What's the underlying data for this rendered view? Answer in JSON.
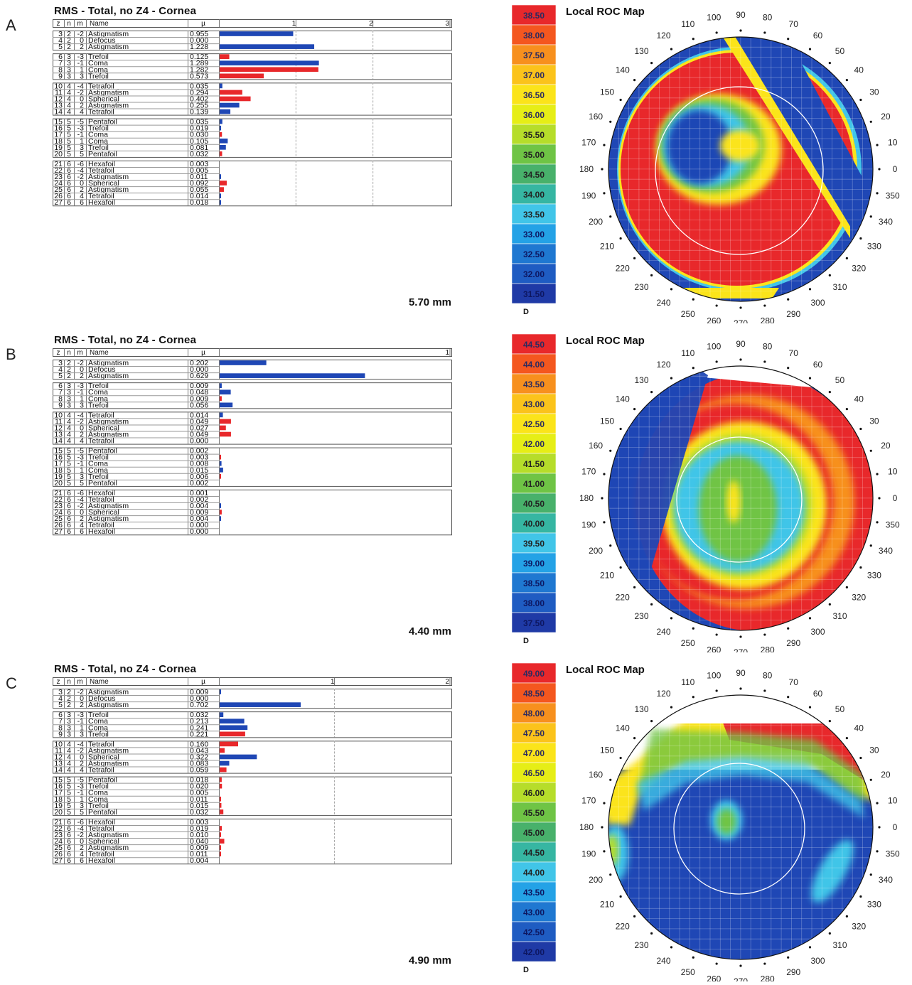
{
  "common": {
    "rms_title": "RMS - Total, no Z4 - Cornea",
    "map_title": "Local ROC Map",
    "unit": "D",
    "headers": {
      "z": "z",
      "n": "n",
      "m": "m",
      "name": "Name",
      "mu": "µ"
    },
    "angle_labels": [
      "0",
      "10",
      "20",
      "30",
      "40",
      "50",
      "60",
      "70",
      "80",
      "90",
      "100",
      "110",
      "120",
      "130",
      "140",
      "150",
      "160",
      "170",
      "180",
      "190",
      "200",
      "210",
      "220",
      "230",
      "240",
      "250",
      "260",
      "270",
      "280",
      "290",
      "300",
      "310",
      "320",
      "330",
      "340",
      "350"
    ]
  },
  "colors": {
    "positive_bar": "#e8282b",
    "negative_bar": "#1f47b5"
  },
  "panels": [
    {
      "letter": "A",
      "pupil": "5.70 mm",
      "axis_max": 3,
      "axis_ticks": [
        "1",
        "2",
        "3"
      ],
      "scale": [
        "38.50",
        "38.00",
        "37.50",
        "37.00",
        "36.50",
        "36.00",
        "35.50",
        "35.00",
        "34.50",
        "34.00",
        "33.50",
        "33.00",
        "32.50",
        "32.00",
        "31.50"
      ],
      "chart_data": {
        "type": "bar",
        "title": "RMS - Total, no Z4 - Cornea",
        "xlabel": "µ",
        "xlim": [
          0,
          3
        ],
        "rows": [
          {
            "z": "3",
            "n": "2",
            "m": "-2",
            "name": "Astigmatism",
            "value": 0.955,
            "label": "0.955",
            "sign": "neg"
          },
          {
            "z": "4",
            "n": "2",
            "m": "0",
            "name": "Defocus",
            "value": 0.0,
            "label": "0.000",
            "sign": "none"
          },
          {
            "z": "5",
            "n": "2",
            "m": "2",
            "name": "Astigmatism",
            "value": 1.228,
            "label": "1.228",
            "sign": "neg"
          },
          {
            "z": "6",
            "n": "3",
            "m": "-3",
            "name": "Trefoil",
            "value": 0.125,
            "label": "0.125",
            "sign": "pos"
          },
          {
            "z": "7",
            "n": "3",
            "m": "-1",
            "name": "Coma",
            "value": 1.289,
            "label": "1.289",
            "sign": "neg"
          },
          {
            "z": "8",
            "n": "3",
            "m": "1",
            "name": "Coma",
            "value": 1.282,
            "label": "1.282",
            "sign": "pos"
          },
          {
            "z": "9",
            "n": "3",
            "m": "3",
            "name": "Trefoil",
            "value": 0.573,
            "label": "0.573",
            "sign": "pos"
          },
          {
            "z": "10",
            "n": "4",
            "m": "-4",
            "name": "Tetrafoil",
            "value": 0.035,
            "label": "0.035",
            "sign": "neg"
          },
          {
            "z": "11",
            "n": "4",
            "m": "-2",
            "name": "Astigmatism",
            "value": 0.294,
            "label": "0.294",
            "sign": "pos"
          },
          {
            "z": "12",
            "n": "4",
            "m": "0",
            "name": "Spherical",
            "value": 0.402,
            "label": "0.402",
            "sign": "pos"
          },
          {
            "z": "13",
            "n": "4",
            "m": "2",
            "name": "Astigmatism",
            "value": 0.255,
            "label": "0.255",
            "sign": "neg"
          },
          {
            "z": "14",
            "n": "4",
            "m": "4",
            "name": "Tetrafoil",
            "value": 0.139,
            "label": "0.139",
            "sign": "neg"
          },
          {
            "z": "15",
            "n": "5",
            "m": "-5",
            "name": "Pentafoil",
            "value": 0.035,
            "label": "0.035",
            "sign": "neg"
          },
          {
            "z": "16",
            "n": "5",
            "m": "-3",
            "name": "Trefoil",
            "value": 0.019,
            "label": "0.019",
            "sign": "neg"
          },
          {
            "z": "17",
            "n": "5",
            "m": "-1",
            "name": "Coma",
            "value": 0.03,
            "label": "0.030",
            "sign": "pos"
          },
          {
            "z": "18",
            "n": "5",
            "m": "1",
            "name": "Coma",
            "value": 0.105,
            "label": "0.105",
            "sign": "neg"
          },
          {
            "z": "19",
            "n": "5",
            "m": "3",
            "name": "Trefoil",
            "value": 0.081,
            "label": "0.081",
            "sign": "neg"
          },
          {
            "z": "20",
            "n": "5",
            "m": "5",
            "name": "Pentafoil",
            "value": 0.032,
            "label": "0.032",
            "sign": "pos"
          },
          {
            "z": "21",
            "n": "6",
            "m": "-6",
            "name": "Hexafoil",
            "value": 0.003,
            "label": "0.003",
            "sign": "none"
          },
          {
            "z": "22",
            "n": "6",
            "m": "-4",
            "name": "Tetrafoil",
            "value": 0.005,
            "label": "0.005",
            "sign": "none"
          },
          {
            "z": "23",
            "n": "6",
            "m": "-2",
            "name": "Astigmatism",
            "value": 0.011,
            "label": "0.011",
            "sign": "neg"
          },
          {
            "z": "24",
            "n": "6",
            "m": "0",
            "name": "Spherical",
            "value": 0.092,
            "label": "0.092",
            "sign": "pos"
          },
          {
            "z": "25",
            "n": "6",
            "m": "2",
            "name": "Astigmatism",
            "value": 0.055,
            "label": "0.055",
            "sign": "pos"
          },
          {
            "z": "26",
            "n": "6",
            "m": "4",
            "name": "Tetrafoil",
            "value": 0.014,
            "label": "0.014",
            "sign": "neg"
          },
          {
            "z": "27",
            "n": "6",
            "m": "6",
            "name": "Hexafoil",
            "value": 0.018,
            "label": "0.018",
            "sign": "neg"
          }
        ]
      }
    },
    {
      "letter": "B",
      "pupil": "4.40 mm",
      "axis_max": 1,
      "axis_ticks": [
        "1"
      ],
      "scale": [
        "44.50",
        "44.00",
        "43.50",
        "43.00",
        "42.50",
        "42.00",
        "41.50",
        "41.00",
        "40.50",
        "40.00",
        "39.50",
        "39.00",
        "38.50",
        "38.00",
        "37.50"
      ],
      "chart_data": {
        "type": "bar",
        "title": "RMS - Total, no Z4 - Cornea",
        "xlabel": "µ",
        "xlim": [
          0,
          1
        ],
        "rows": [
          {
            "z": "3",
            "n": "2",
            "m": "-2",
            "name": "Astigmatism",
            "value": 0.202,
            "label": "0.202",
            "sign": "neg"
          },
          {
            "z": "4",
            "n": "2",
            "m": "0",
            "name": "Defocus",
            "value": 0.0,
            "label": "0.000",
            "sign": "none"
          },
          {
            "z": "5",
            "n": "2",
            "m": "2",
            "name": "Astigmatism",
            "value": 0.629,
            "label": "0.629",
            "sign": "neg"
          },
          {
            "z": "6",
            "n": "3",
            "m": "-3",
            "name": "Trefoil",
            "value": 0.009,
            "label": "0.009",
            "sign": "neg"
          },
          {
            "z": "7",
            "n": "3",
            "m": "-1",
            "name": "Coma",
            "value": 0.048,
            "label": "0.048",
            "sign": "neg"
          },
          {
            "z": "8",
            "n": "3",
            "m": "1",
            "name": "Coma",
            "value": 0.009,
            "label": "0.009",
            "sign": "pos"
          },
          {
            "z": "9",
            "n": "3",
            "m": "3",
            "name": "Trefoil",
            "value": 0.056,
            "label": "0.056",
            "sign": "neg"
          },
          {
            "z": "10",
            "n": "4",
            "m": "-4",
            "name": "Tetrafoil",
            "value": 0.014,
            "label": "0.014",
            "sign": "neg"
          },
          {
            "z": "11",
            "n": "4",
            "m": "-2",
            "name": "Astigmatism",
            "value": 0.049,
            "label": "0.049",
            "sign": "pos"
          },
          {
            "z": "12",
            "n": "4",
            "m": "0",
            "name": "Spherical",
            "value": 0.027,
            "label": "0.027",
            "sign": "pos"
          },
          {
            "z": "13",
            "n": "4",
            "m": "2",
            "name": "Astigmatism",
            "value": 0.049,
            "label": "0.049",
            "sign": "pos"
          },
          {
            "z": "14",
            "n": "4",
            "m": "4",
            "name": "Tetrafoil",
            "value": 0.0,
            "label": "0.000",
            "sign": "none"
          },
          {
            "z": "15",
            "n": "5",
            "m": "-5",
            "name": "Pentafoil",
            "value": 0.002,
            "label": "0.002",
            "sign": "none"
          },
          {
            "z": "16",
            "n": "5",
            "m": "-3",
            "name": "Trefoil",
            "value": 0.003,
            "label": "0.003",
            "sign": "pos"
          },
          {
            "z": "17",
            "n": "5",
            "m": "-1",
            "name": "Coma",
            "value": 0.008,
            "label": "0.008",
            "sign": "neg"
          },
          {
            "z": "18",
            "n": "5",
            "m": "1",
            "name": "Coma",
            "value": 0.015,
            "label": "0.015",
            "sign": "neg"
          },
          {
            "z": "19",
            "n": "5",
            "m": "3",
            "name": "Trefoil",
            "value": 0.006,
            "label": "0.006",
            "sign": "pos"
          },
          {
            "z": "20",
            "n": "5",
            "m": "5",
            "name": "Pentafoil",
            "value": 0.002,
            "label": "0.002",
            "sign": "none"
          },
          {
            "z": "21",
            "n": "6",
            "m": "-6",
            "name": "Hexafoil",
            "value": 0.001,
            "label": "0.001",
            "sign": "none"
          },
          {
            "z": "22",
            "n": "6",
            "m": "-4",
            "name": "Tetrafoil",
            "value": 0.002,
            "label": "0.002",
            "sign": "none"
          },
          {
            "z": "23",
            "n": "6",
            "m": "-2",
            "name": "Astigmatism",
            "value": 0.004,
            "label": "0.004",
            "sign": "neg"
          },
          {
            "z": "24",
            "n": "6",
            "m": "0",
            "name": "Spherical",
            "value": 0.009,
            "label": "0.009",
            "sign": "pos"
          },
          {
            "z": "25",
            "n": "6",
            "m": "2",
            "name": "Astigmatism",
            "value": 0.004,
            "label": "0.004",
            "sign": "neg"
          },
          {
            "z": "26",
            "n": "6",
            "m": "4",
            "name": "Tetrafoil",
            "value": 0.0,
            "label": "0.000",
            "sign": "none"
          },
          {
            "z": "27",
            "n": "6",
            "m": "6",
            "name": "Hexafoil",
            "value": 0.0,
            "label": "0.000",
            "sign": "none"
          }
        ]
      }
    },
    {
      "letter": "C",
      "pupil": "4.90 mm",
      "axis_max": 2,
      "axis_ticks": [
        "1",
        "2"
      ],
      "scale": [
        "49.00",
        "48.50",
        "48.00",
        "47.50",
        "47.00",
        "46.50",
        "46.00",
        "45.50",
        "45.00",
        "44.50",
        "44.00",
        "43.50",
        "43.00",
        "42.50",
        "42.00"
      ],
      "chart_data": {
        "type": "bar",
        "title": "RMS - Total, no Z4 - Cornea",
        "xlabel": "µ",
        "xlim": [
          0,
          2
        ],
        "rows": [
          {
            "z": "3",
            "n": "2",
            "m": "-2",
            "name": "Astigmatism",
            "value": 0.009,
            "label": "0.009",
            "sign": "neg"
          },
          {
            "z": "4",
            "n": "2",
            "m": "0",
            "name": "Defocus",
            "value": 0.0,
            "label": "0.000",
            "sign": "none"
          },
          {
            "z": "5",
            "n": "2",
            "m": "2",
            "name": "Astigmatism",
            "value": 0.702,
            "label": "0.702",
            "sign": "neg"
          },
          {
            "z": "6",
            "n": "3",
            "m": "-3",
            "name": "Trefoil",
            "value": 0.032,
            "label": "0.032",
            "sign": "neg"
          },
          {
            "z": "7",
            "n": "3",
            "m": "-1",
            "name": "Coma",
            "value": 0.213,
            "label": "0.213",
            "sign": "neg"
          },
          {
            "z": "8",
            "n": "3",
            "m": "1",
            "name": "Coma",
            "value": 0.241,
            "label": "0.241",
            "sign": "neg"
          },
          {
            "z": "9",
            "n": "3",
            "m": "3",
            "name": "Trefoil",
            "value": 0.221,
            "label": "0.221",
            "sign": "pos"
          },
          {
            "z": "10",
            "n": "4",
            "m": "-4",
            "name": "Tetrafoil",
            "value": 0.16,
            "label": "0.160",
            "sign": "pos"
          },
          {
            "z": "11",
            "n": "4",
            "m": "-2",
            "name": "Astigmatism",
            "value": 0.043,
            "label": "0.043",
            "sign": "pos"
          },
          {
            "z": "12",
            "n": "4",
            "m": "0",
            "name": "Spherical",
            "value": 0.322,
            "label": "0.322",
            "sign": "neg"
          },
          {
            "z": "13",
            "n": "4",
            "m": "2",
            "name": "Astigmatism",
            "value": 0.083,
            "label": "0.083",
            "sign": "neg"
          },
          {
            "z": "14",
            "n": "4",
            "m": "4",
            "name": "Tetrafoil",
            "value": 0.059,
            "label": "0.059",
            "sign": "pos"
          },
          {
            "z": "15",
            "n": "5",
            "m": "-5",
            "name": "Pentafoil",
            "value": 0.018,
            "label": "0.018",
            "sign": "pos"
          },
          {
            "z": "16",
            "n": "5",
            "m": "-3",
            "name": "Trefoil",
            "value": 0.02,
            "label": "0.020",
            "sign": "pos"
          },
          {
            "z": "17",
            "n": "5",
            "m": "-1",
            "name": "Coma",
            "value": 0.005,
            "label": "0.005",
            "sign": "none"
          },
          {
            "z": "18",
            "n": "5",
            "m": "1",
            "name": "Coma",
            "value": 0.011,
            "label": "0.011",
            "sign": "pos"
          },
          {
            "z": "19",
            "n": "5",
            "m": "3",
            "name": "Trefoil",
            "value": 0.015,
            "label": "0.015",
            "sign": "pos"
          },
          {
            "z": "20",
            "n": "5",
            "m": "5",
            "name": "Pentafoil",
            "value": 0.032,
            "label": "0.032",
            "sign": "pos"
          },
          {
            "z": "21",
            "n": "6",
            "m": "-6",
            "name": "Hexafoil",
            "value": 0.003,
            "label": "0.003",
            "sign": "none"
          },
          {
            "z": "22",
            "n": "6",
            "m": "-4",
            "name": "Tetrafoil",
            "value": 0.019,
            "label": "0.019",
            "sign": "pos"
          },
          {
            "z": "23",
            "n": "6",
            "m": "-2",
            "name": "Astigmatism",
            "value": 0.01,
            "label": "0.010",
            "sign": "pos"
          },
          {
            "z": "24",
            "n": "6",
            "m": "0",
            "name": "Spherical",
            "value": 0.04,
            "label": "0.040",
            "sign": "pos"
          },
          {
            "z": "25",
            "n": "6",
            "m": "2",
            "name": "Astigmatism",
            "value": 0.009,
            "label": "0.009",
            "sign": "pos"
          },
          {
            "z": "26",
            "n": "6",
            "m": "4",
            "name": "Tetrafoil",
            "value": 0.011,
            "label": "0.011",
            "sign": "pos"
          },
          {
            "z": "27",
            "n": "6",
            "m": "6",
            "name": "Hexafoil",
            "value": 0.004,
            "label": "0.004",
            "sign": "none"
          }
        ]
      }
    }
  ]
}
